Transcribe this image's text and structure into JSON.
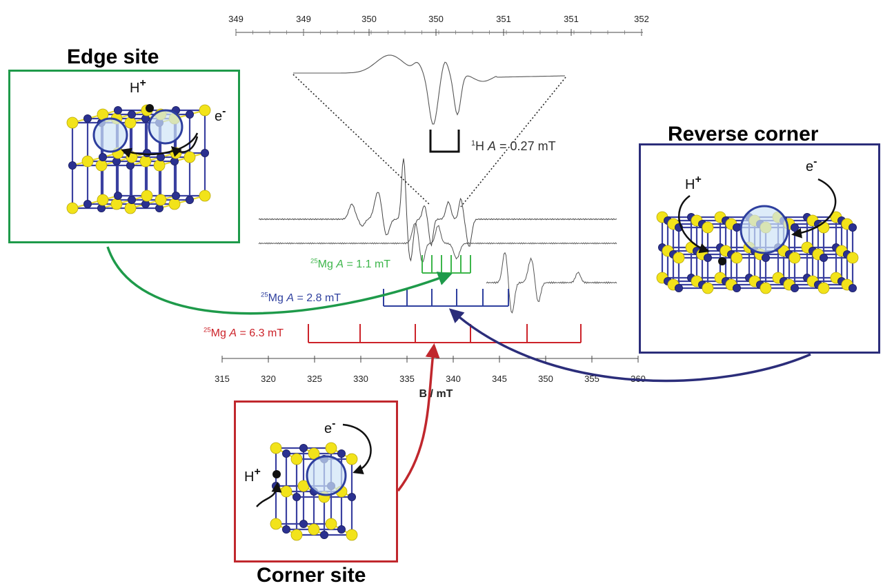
{
  "titles": {
    "edge": "Edge site",
    "reverse": "Reverse corner",
    "corner": "Corner site"
  },
  "top_axis": {
    "tick_labels": [
      "349",
      "349",
      "350",
      "350",
      "351",
      "351",
      "352"
    ]
  },
  "bottom_axis": {
    "tick_labels": [
      "315",
      "320",
      "325",
      "330",
      "335",
      "340",
      "345",
      "350",
      "355",
      "360"
    ],
    "label": "B / mT"
  },
  "hyperfine": {
    "h": {
      "iso": "1",
      "text": "H ",
      "ital": "A",
      "val": " = 0.27 mT"
    },
    "mg_green": {
      "iso": "25",
      "text": "Mg ",
      "ital": "A",
      "val": " = 1.1 mT",
      "color": "#3cb54a"
    },
    "mg_blue": {
      "iso": "25",
      "text": "Mg ",
      "ital": "A",
      "val": " = 2.8 mT",
      "color": "#2e3f9e"
    },
    "mg_red": {
      "iso": "25",
      "text": "Mg ",
      "ital": "A",
      "val": " = 6.3 mT",
      "color": "#cc2229"
    }
  },
  "labels": {
    "h_plus": "H",
    "plus": "+",
    "e": "e",
    "minus": "-"
  },
  "colors": {
    "edge_frame": "#1e9a4a",
    "reverse_frame": "#2b2d7a",
    "corner_frame": "#c0272d",
    "atom_yellow": "#f2e31a",
    "atom_blue": "#2b3190",
    "bond_blue": "#3a40a0",
    "bond_yellow": "#e8da2a"
  }
}
